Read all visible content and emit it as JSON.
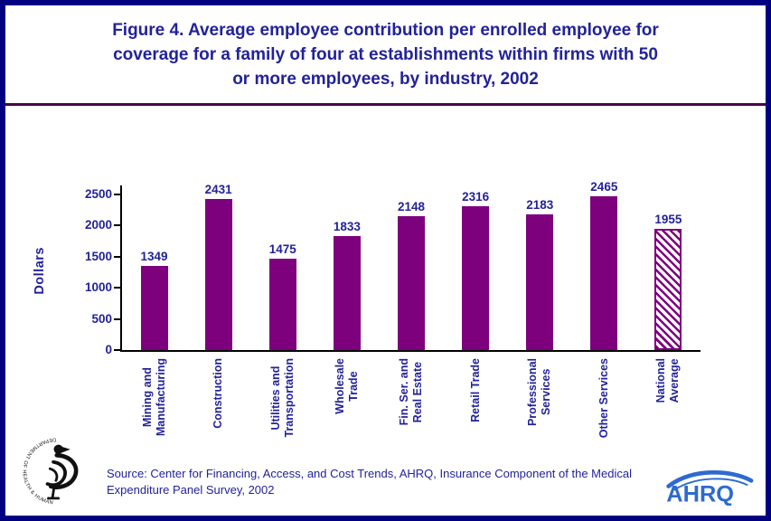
{
  "title": "Figure 4. Average employee contribution per enrolled employee for\ncoverage for a family of four at establishments within firms with 50\nor more employees, by industry, 2002",
  "colors": {
    "border": "#000080",
    "navy_text": "#22229a",
    "bar_purple": "#7d007d",
    "divider": "#4c004c",
    "axis_black": "#000000",
    "ahrq_blue": "#2d6ad0"
  },
  "chart_data": {
    "type": "bar",
    "categories": [
      "Mining and\nManufacturing",
      "Construction",
      "Utilities and\nTransportation",
      "Wholesale\nTrade",
      "Fin. Ser. and\nReal Estate",
      "Retail Trade",
      "Professional\nServices",
      "Other Services",
      "National\nAverage"
    ],
    "values": [
      1349,
      2431,
      1475,
      1833,
      2148,
      2316,
      2183,
      2465,
      1955
    ],
    "title": "",
    "xlabel": "",
    "ylabel": "Dollars",
    "ylim": [
      0,
      2500
    ],
    "yticks": [
      0,
      500,
      1000,
      1500,
      2000,
      2500
    ],
    "bar_color": "#7d007d",
    "hatched_category": "National\nAverage",
    "legend": "none",
    "grid": false
  },
  "footer": {
    "source_text": "Source: Center for Financing, Access, and Cost Trends, AHRQ, Insurance Component of the Medical\nExpenditure Panel Survey, 2002",
    "ahrq_logo_text": "AHRQ",
    "hhs_ring_text": "DEPARTMENT OF HEALTH & HUMAN SERVICES • USA"
  }
}
